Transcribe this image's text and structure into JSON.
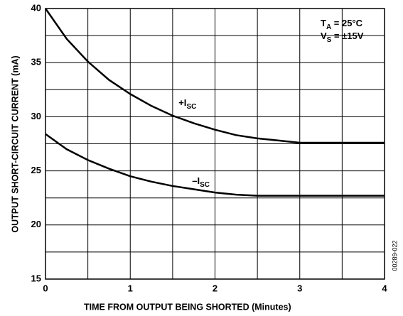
{
  "chart_data": {
    "type": "line",
    "xlabel": "TIME FROM OUTPUT BEING SHORTED (Minutes)",
    "ylabel": "OUTPUT SHORT-CIRCUIT CURRENT (mA)",
    "x": [
      0,
      0.25,
      0.5,
      0.75,
      1,
      1.25,
      1.5,
      1.75,
      2,
      2.25,
      2.5,
      2.75,
      3,
      3.25,
      3.5,
      3.75,
      4
    ],
    "series": [
      {
        "name": "+I",
        "name_subscript": "SC",
        "color": "#000000",
        "values": [
          40,
          37.2,
          35.1,
          33.4,
          32.1,
          31.0,
          30.1,
          29.4,
          28.8,
          28.3,
          28.0,
          27.8,
          27.6,
          27.6,
          27.6,
          27.6,
          27.6
        ]
      },
      {
        "name": "–I",
        "name_subscript": "SC",
        "color": "#000000",
        "values": [
          28.4,
          27.0,
          26.0,
          25.2,
          24.5,
          24.0,
          23.6,
          23.3,
          23.0,
          22.8,
          22.7,
          22.7,
          22.7,
          22.7,
          22.7,
          22.7,
          22.7
        ]
      }
    ],
    "xlim": [
      0,
      4
    ],
    "xticks": [
      0,
      1,
      2,
      3,
      4
    ],
    "x_minor_grid": [
      0.5,
      1.5,
      2.5,
      3.5
    ],
    "ylim": [
      15,
      40
    ],
    "yticks": [
      15,
      20,
      25,
      30,
      35,
      40
    ],
    "y_minor_grid": [
      17.5,
      22.5,
      27.5,
      32.5,
      37.5
    ],
    "grid": true,
    "annotations": [
      {
        "text": "T",
        "subscript": "A",
        "rest": " = 25°C"
      },
      {
        "text": "V",
        "subscript": "S",
        "rest": " = ±15V"
      }
    ],
    "figure_id": "00289-022"
  }
}
